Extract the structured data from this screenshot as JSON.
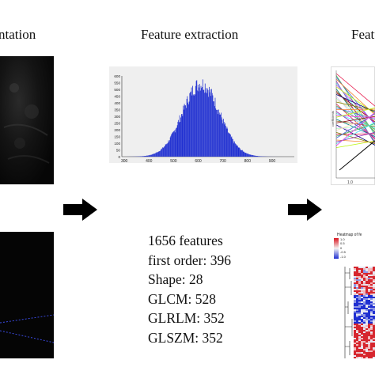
{
  "titles": {
    "left": "ntation",
    "center": "Feature extraction",
    "right": "Featu"
  },
  "features": {
    "total": "1656 features",
    "first_order": "first order: 396",
    "shape": "Shape: 28",
    "glcm": "GLCM: 528",
    "glrlm": "GLRLM: 352",
    "glszm": "GLSZM: 352"
  },
  "histogram": {
    "color": "#1f2fd1",
    "bg": "#f0f0f0"
  },
  "heatmap": {
    "legend_title": "Heatmap of fe",
    "legend_values": [
      "1.0",
      "0.5",
      "0",
      "-0.5",
      "-1.0"
    ]
  },
  "coef_plot": {
    "ylabel": "coefficients",
    "xtick": "1.0"
  },
  "chart_data": {
    "type": "bar",
    "xlim": [
      290,
      990
    ],
    "ylim": [
      0,
      600
    ],
    "xticks": [
      300,
      400,
      500,
      600,
      700,
      800,
      900
    ],
    "yticks": [
      0,
      50,
      100,
      150,
      200,
      250,
      300,
      350,
      400,
      450,
      500,
      550,
      600
    ],
    "grid": false,
    "distribution": {
      "shape": "approximately normal histogram",
      "peak_x": 610,
      "peak_y": 590,
      "x_range": [
        310,
        960
      ]
    }
  }
}
